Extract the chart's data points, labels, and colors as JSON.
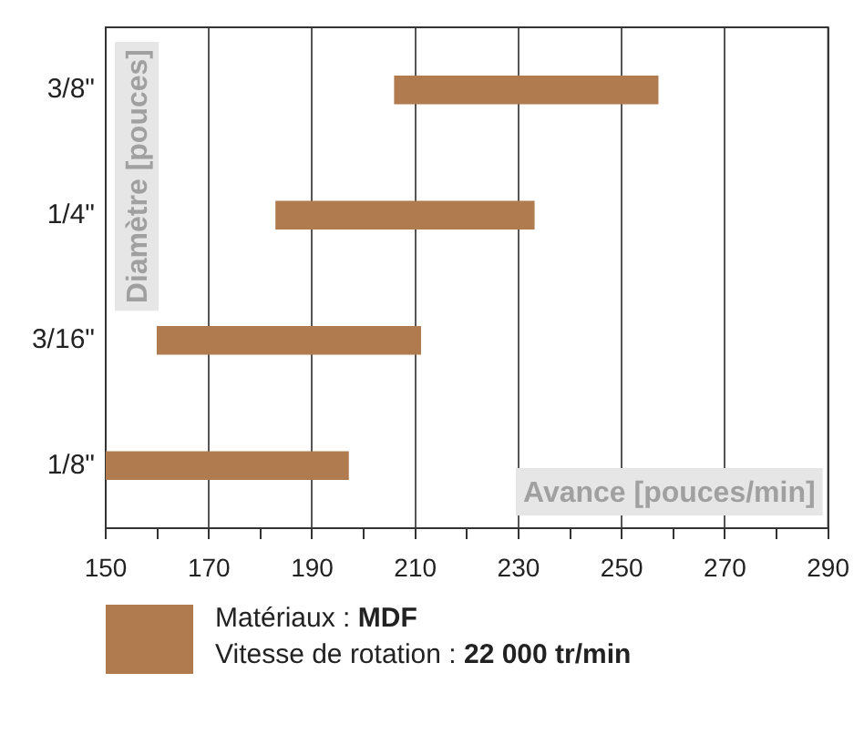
{
  "chart_data": {
    "type": "bar",
    "orientation": "horizontal",
    "xlabel": "Avance [pouces/min]",
    "ylabel": "Diamètre [pouces]",
    "categories": [
      "3/8\"",
      "1/4\"",
      "3/16\"",
      "1/8\""
    ],
    "series": [
      {
        "color": "#b07c4f",
        "values": [
          51,
          50,
          51,
          47
        ],
        "base": [
          206,
          183,
          160,
          150
        ]
      }
    ],
    "xlim": [
      150,
      290
    ],
    "xticks": [
      150,
      {
        "value": 160,
        "label": null
      },
      170,
      {
        "value": 180,
        "label": null
      },
      190,
      {
        "value": 200,
        "label": null
      },
      210,
      {
        "value": 220,
        "label": null
      },
      230,
      {
        "value": 240,
        "label": null
      },
      250,
      {
        "value": 260,
        "label": null
      },
      270,
      {
        "value": 280,
        "label": null
      },
      290
    ],
    "grid": "x",
    "annotations": [
      "Matériaux : MDF",
      "Vitesse de rotation : 22 000 tr/min"
    ]
  }
}
